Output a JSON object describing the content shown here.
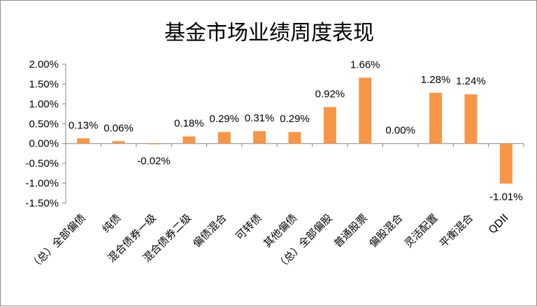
{
  "chart_data": {
    "type": "bar",
    "title": "基金市场业绩周度表现",
    "xlabel": "",
    "ylabel": "",
    "ylim": [
      -0.015,
      0.02
    ],
    "yticks": [
      0.02,
      0.015,
      0.01,
      0.005,
      0,
      -0.005,
      -0.01,
      -0.015
    ],
    "ytick_labels": [
      "2.00%",
      "1.50%",
      "1.00%",
      "0.50%",
      "0.00%",
      "-0.50%",
      "-1.00%",
      "-1.50%"
    ],
    "grid": false,
    "legend": "none",
    "bar_color": "#F79646",
    "categories": [
      "（总）全部偏债",
      "纯债",
      "混合债券一级",
      "混合债券二级",
      "偏债混合",
      "可转债",
      "其他偏债",
      "（总）全部偏股",
      "普通股票",
      "偏股混合",
      "灵活配置",
      "平衡混合",
      "QDII"
    ],
    "values": [
      0.0013,
      0.0006,
      -0.0002,
      0.0018,
      0.0029,
      0.0031,
      0.0029,
      0.0092,
      0.0166,
      0.0,
      0.0128,
      0.0124,
      -0.0101
    ],
    "data_labels": [
      "0.13%",
      "0.06%",
      "-0.02%",
      "0.18%",
      "0.29%",
      "0.31%",
      "0.29%",
      "0.92%",
      "1.66%",
      "0.00%",
      "1.28%",
      "1.24%",
      "-1.01%"
    ]
  }
}
